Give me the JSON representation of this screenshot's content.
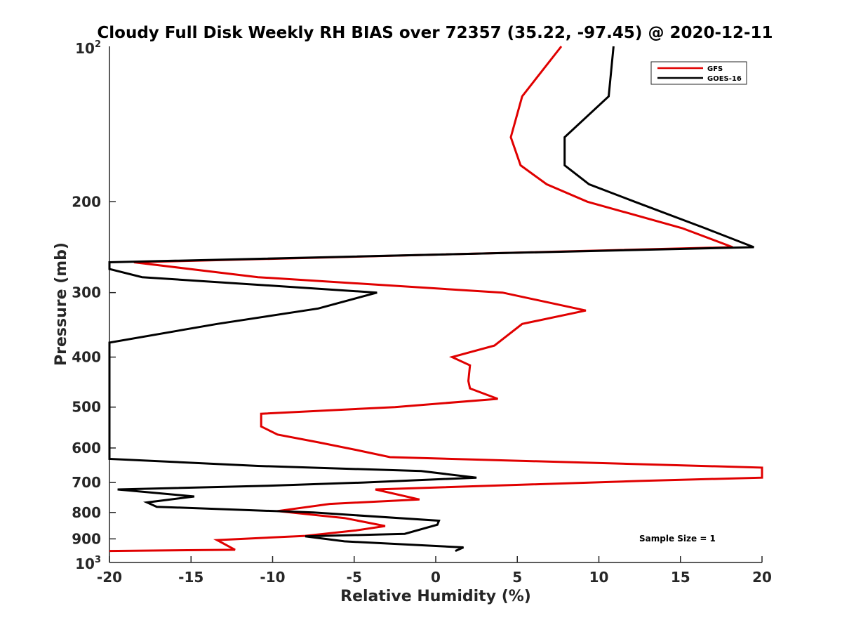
{
  "chart_data": {
    "type": "line",
    "title": "Cloudy Full Disk Weekly RH BIAS over 72357 (35.22, -97.45) @ 2020-12-11",
    "xlabel": "Relative Humidity (%)",
    "ylabel": "Pressure (mb)",
    "xlim": [
      -20,
      20
    ],
    "ylim": [
      100,
      1000
    ],
    "yscale": "log",
    "y_reversed": true,
    "xticks": [
      -20,
      -15,
      -10,
      -5,
      0,
      5,
      10,
      15,
      20
    ],
    "xtick_labels": [
      "-20",
      "-15",
      "-10",
      "-5",
      "0",
      "5",
      "10",
      "15",
      "20"
    ],
    "yticks": [
      200,
      300,
      400,
      500,
      600,
      700,
      800,
      900
    ],
    "ytick_labels": [
      "200",
      "300",
      "400",
      "500",
      "600",
      "700",
      "800",
      "900"
    ],
    "y_end_labels": {
      "top": {
        "base": "10",
        "exp": "2",
        "value": 100
      },
      "bottom": {
        "base": "10",
        "exp": "3",
        "value": 1000
      }
    },
    "grid": false,
    "legend_position": "top-right",
    "annotation": "Sample Size = 1",
    "series": [
      {
        "name": "GFS",
        "color": "#e00000",
        "points": [
          [
            7.7,
            100
          ],
          [
            5.3,
            125
          ],
          [
            4.6,
            150
          ],
          [
            5.2,
            170
          ],
          [
            6.8,
            185
          ],
          [
            9.3,
            200
          ],
          [
            15.1,
            225
          ],
          [
            18.2,
            245
          ],
          [
            -18.5,
            262
          ],
          [
            -10.9,
            280
          ],
          [
            4.1,
            300
          ],
          [
            9.2,
            325
          ],
          [
            5.3,
            345
          ],
          [
            3.6,
            380
          ],
          [
            1.0,
            400
          ],
          [
            2.1,
            415
          ],
          [
            2.0,
            445
          ],
          [
            2.1,
            460
          ],
          [
            3.8,
            482
          ],
          [
            -2.5,
            500
          ],
          [
            -10.7,
            515
          ],
          [
            -10.7,
            545
          ],
          [
            -9.7,
            565
          ],
          [
            -7.2,
            585
          ],
          [
            -4.9,
            605
          ],
          [
            -2.8,
            625
          ],
          [
            20,
            655
          ],
          [
            20,
            685
          ],
          [
            12.5,
            695
          ],
          [
            -3.7,
            722
          ],
          [
            -1.0,
            755
          ],
          [
            -6.5,
            770
          ],
          [
            -9.7,
            795
          ],
          [
            -5.6,
            820
          ],
          [
            -3.1,
            850
          ],
          [
            -4.9,
            867
          ],
          [
            -8.0,
            888
          ],
          [
            -13.4,
            905
          ],
          [
            -12.3,
            945
          ],
          [
            -20,
            950
          ]
        ]
      },
      {
        "name": "GOES-16",
        "color": "#000000",
        "points": [
          [
            10.9,
            100
          ],
          [
            10.6,
            125
          ],
          [
            7.9,
            150
          ],
          [
            7.9,
            170
          ],
          [
            9.4,
            185
          ],
          [
            12.2,
            200
          ],
          [
            16.5,
            225
          ],
          [
            19.5,
            245
          ],
          [
            -20,
            262
          ],
          [
            -20,
            270
          ],
          [
            -18.0,
            280
          ],
          [
            -3.6,
            300
          ],
          [
            -7.2,
            322
          ],
          [
            -13.4,
            345
          ],
          [
            -20,
            375
          ],
          [
            -20,
            630
          ],
          [
            -10.9,
            650
          ],
          [
            -0.9,
            665
          ],
          [
            2.5,
            685
          ],
          [
            -4.4,
            700
          ],
          [
            -10.3,
            710
          ],
          [
            -19.5,
            722
          ],
          [
            -14.8,
            745
          ],
          [
            -17.7,
            765
          ],
          [
            -17.1,
            780
          ],
          [
            -7.5,
            800
          ],
          [
            0.2,
            830
          ],
          [
            0.1,
            845
          ],
          [
            -1.9,
            880
          ],
          [
            -8.0,
            890
          ],
          [
            -5.6,
            910
          ],
          [
            1.7,
            935
          ],
          [
            1.2,
            950
          ]
        ]
      }
    ]
  }
}
